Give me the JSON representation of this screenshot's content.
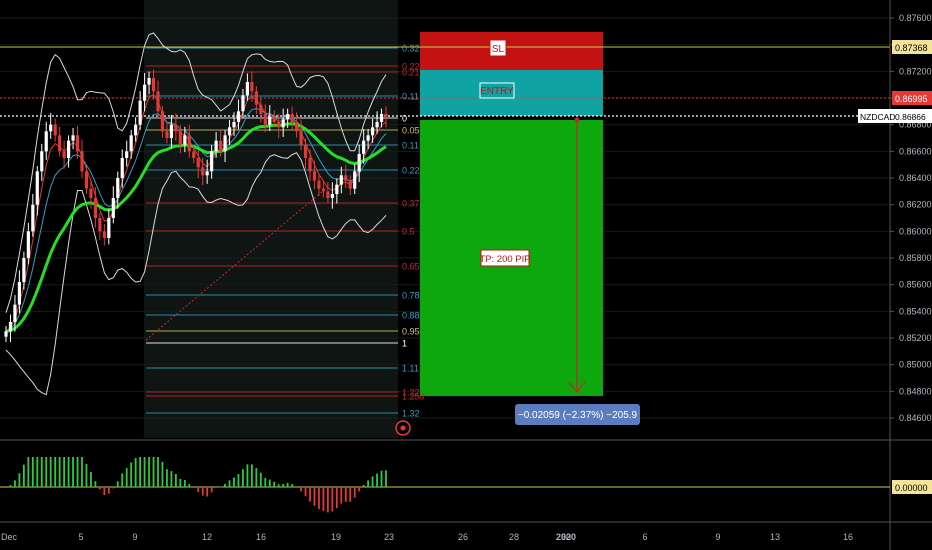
{
  "symbol": "NZDCAD",
  "colors": {
    "background": "#000000",
    "axis_text": "#b2b5be",
    "grid": "#1a1a1a",
    "up": "#ffffff",
    "down": "#e53935",
    "ema_slow": "#23e023",
    "bollinger": "#d9d9d9",
    "stop_zone": "#c41212",
    "entry_zone": "#0fa3a3",
    "target_zone": "#0da80d",
    "measure_box": "#5b7dbd",
    "price_line": "#ffffff",
    "sl_line": "#c8c850",
    "current_line": "#e53935",
    "fib_warm": "#c62828",
    "fib_cool": "#2f9fc4",
    "fib_gold": "#d4c35a"
  },
  "price_axis": {
    "ticks": [
      "0.87600",
      "0.87400",
      "0.87200",
      "0.87000",
      "0.86800",
      "0.86600",
      "0.86400",
      "0.86200",
      "0.86000",
      "0.85800",
      "0.85600",
      "0.85400",
      "0.85200",
      "0.85000",
      "0.84800",
      "0.84600"
    ],
    "labels": {
      "sl_value": "0.87368",
      "current_value": "0.86995",
      "symbol_value": "0.86866",
      "oscillator_zero": "0.00000"
    }
  },
  "time_axis": {
    "labels": [
      "Dec",
      "5",
      "9",
      "12",
      "16",
      "19",
      "23",
      "26",
      "28",
      "30",
      "2020",
      "6",
      "9",
      "13",
      "16"
    ]
  },
  "position": {
    "sl_label": "SL",
    "entry_label": "ENTRY",
    "tp_label": "TP: 200 PIP",
    "measure_label": "−0.02059 (−2.37%) −205.9"
  },
  "fib_levels": [
    {
      "label": "0.32",
      "tone": "cool"
    },
    {
      "label": "0.22",
      "tone": "warm"
    },
    {
      "label": "0.21",
      "tone": "warm"
    },
    {
      "label": "0.11",
      "tone": "cool"
    },
    {
      "label": "0",
      "tone": "white"
    },
    {
      "label": "0.05",
      "tone": "gold"
    },
    {
      "label": "0.11",
      "tone": "cool"
    },
    {
      "label": "0.22",
      "tone": "cool"
    },
    {
      "label": "0.37",
      "tone": "warm"
    },
    {
      "label": "0.5",
      "tone": "warm"
    },
    {
      "label": "0.65",
      "tone": "warm"
    },
    {
      "label": "0.78",
      "tone": "cool"
    },
    {
      "label": "0.88",
      "tone": "cool"
    },
    {
      "label": "0.95",
      "tone": "gold"
    },
    {
      "label": "1",
      "tone": "white"
    },
    {
      "label": "1.11",
      "tone": "cool"
    },
    {
      "label": "1.22",
      "tone": "warm"
    },
    {
      "label": "1.258",
      "tone": "warm"
    },
    {
      "label": "1.32",
      "tone": "cool"
    }
  ],
  "chart_data": {
    "type": "candlestick",
    "instrument": "NZDCAD",
    "x_labels": [
      "Dec",
      "5",
      "9",
      "12",
      "16",
      "19",
      "23",
      "26",
      "28",
      "30",
      "2020",
      "6",
      "9",
      "13",
      "16"
    ],
    "y_ticks": [
      0.876,
      0.874,
      0.872,
      0.87,
      0.868,
      0.866,
      0.864,
      0.862,
      0.86,
      0.858,
      0.856,
      0.854,
      0.852,
      0.85,
      0.848,
      0.846
    ],
    "ylim": [
      0.8448,
      0.8773
    ],
    "close_series": [
      0.8525,
      0.8532,
      0.8545,
      0.8562,
      0.858,
      0.86,
      0.862,
      0.8645,
      0.866,
      0.8675,
      0.868,
      0.8672,
      0.866,
      0.8655,
      0.8668,
      0.8672,
      0.866,
      0.8645,
      0.8632,
      0.8625,
      0.861,
      0.86,
      0.8595,
      0.861,
      0.8625,
      0.864,
      0.8655,
      0.866,
      0.8672,
      0.868,
      0.8698,
      0.871,
      0.8715,
      0.8705,
      0.869,
      0.8675,
      0.867,
      0.868,
      0.8675,
      0.8665,
      0.8672,
      0.866,
      0.8655,
      0.8648,
      0.8642,
      0.8645,
      0.866,
      0.8668,
      0.866,
      0.8672,
      0.8678,
      0.8682,
      0.869,
      0.8702,
      0.8712,
      0.8705,
      0.8695,
      0.8688,
      0.868,
      0.8686,
      0.8682,
      0.8678,
      0.8684,
      0.8688,
      0.8682,
      0.8675,
      0.8665,
      0.8655,
      0.8645,
      0.8638,
      0.8632,
      0.863,
      0.8625,
      0.8628,
      0.8635,
      0.8642,
      0.8638,
      0.8632,
      0.8645,
      0.8658,
      0.8668,
      0.8672,
      0.8678,
      0.8682,
      0.8688,
      0.8686
    ],
    "reference_levels": {
      "stop_loss": 0.87368,
      "current": 0.86995,
      "entry": 0.86866
    },
    "target_pips": 200,
    "measurement": {
      "change": -0.02059,
      "percent": -2.37,
      "pips": -205.9
    },
    "fibonacci": [
      0.32,
      0.22,
      0.21,
      0.11,
      0,
      0.05,
      0.11,
      0.22,
      0.37,
      0.5,
      0.65,
      0.78,
      0.88,
      0.95,
      1,
      1.11,
      1.22,
      1.258,
      1.32
    ],
    "oscillator_zero": 0.0
  }
}
